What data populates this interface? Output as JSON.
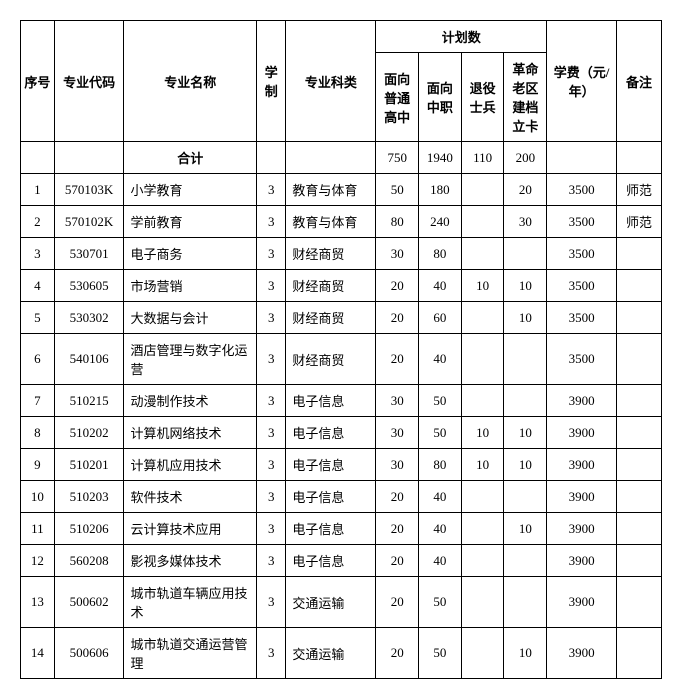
{
  "headers": {
    "seq": "序号",
    "code": "专业代码",
    "name": "专业名称",
    "system": "学制",
    "category": "专业科类",
    "plan_group": "计划数",
    "plan1": "面向普通高中",
    "plan2": "面向中职",
    "plan3": "退役士兵",
    "plan4": "革命老区建档立卡",
    "fee": "学费（元/年）",
    "note": "备注",
    "total": "合计"
  },
  "totals": {
    "plan1": "750",
    "plan2": "1940",
    "plan3": "110",
    "plan4": "200"
  },
  "rows": [
    {
      "seq": "1",
      "code": "570103K",
      "name": "小学教育",
      "system": "3",
      "category": "教育与体育",
      "p1": "50",
      "p2": "180",
      "p3": "",
      "p4": "20",
      "fee": "3500",
      "note": "师范"
    },
    {
      "seq": "2",
      "code": "570102K",
      "name": "学前教育",
      "system": "3",
      "category": "教育与体育",
      "p1": "80",
      "p2": "240",
      "p3": "",
      "p4": "30",
      "fee": "3500",
      "note": "师范"
    },
    {
      "seq": "3",
      "code": "530701",
      "name": "电子商务",
      "system": "3",
      "category": "财经商贸",
      "p1": "30",
      "p2": "80",
      "p3": "",
      "p4": "",
      "fee": "3500",
      "note": ""
    },
    {
      "seq": "4",
      "code": "530605",
      "name": "市场营销",
      "system": "3",
      "category": "财经商贸",
      "p1": "20",
      "p2": "40",
      "p3": "10",
      "p4": "10",
      "fee": "3500",
      "note": ""
    },
    {
      "seq": "5",
      "code": "530302",
      "name": "大数据与会计",
      "system": "3",
      "category": "财经商贸",
      "p1": "20",
      "p2": "60",
      "p3": "",
      "p4": "10",
      "fee": "3500",
      "note": ""
    },
    {
      "seq": "6",
      "code": "540106",
      "name": "酒店管理与数字化运营",
      "system": "3",
      "category": "财经商贸",
      "p1": "20",
      "p2": "40",
      "p3": "",
      "p4": "",
      "fee": "3500",
      "note": ""
    },
    {
      "seq": "7",
      "code": "510215",
      "name": "动漫制作技术",
      "system": "3",
      "category": "电子信息",
      "p1": "30",
      "p2": "50",
      "p3": "",
      "p4": "",
      "fee": "3900",
      "note": ""
    },
    {
      "seq": "8",
      "code": "510202",
      "name": "计算机网络技术",
      "system": "3",
      "category": "电子信息",
      "p1": "30",
      "p2": "50",
      "p3": "10",
      "p4": "10",
      "fee": "3900",
      "note": ""
    },
    {
      "seq": "9",
      "code": "510201",
      "name": "计算机应用技术",
      "system": "3",
      "category": "电子信息",
      "p1": "30",
      "p2": "80",
      "p3": "10",
      "p4": "10",
      "fee": "3900",
      "note": ""
    },
    {
      "seq": "10",
      "code": "510203",
      "name": "软件技术",
      "system": "3",
      "category": "电子信息",
      "p1": "20",
      "p2": "40",
      "p3": "",
      "p4": "",
      "fee": "3900",
      "note": ""
    },
    {
      "seq": "11",
      "code": "510206",
      "name": "云计算技术应用",
      "system": "3",
      "category": "电子信息",
      "p1": "20",
      "p2": "40",
      "p3": "",
      "p4": "10",
      "fee": "3900",
      "note": ""
    },
    {
      "seq": "12",
      "code": "560208",
      "name": "影视多媒体技术",
      "system": "3",
      "category": "电子信息",
      "p1": "20",
      "p2": "40",
      "p3": "",
      "p4": "",
      "fee": "3900",
      "note": ""
    },
    {
      "seq": "13",
      "code": "500602",
      "name": "城市轨道车辆应用技术",
      "system": "3",
      "category": "交通运输",
      "p1": "20",
      "p2": "50",
      "p3": "",
      "p4": "",
      "fee": "3900",
      "note": ""
    },
    {
      "seq": "14",
      "code": "500606",
      "name": "城市轨道交通运营管理",
      "system": "3",
      "category": "交通运输",
      "p1": "20",
      "p2": "50",
      "p3": "",
      "p4": "10",
      "fee": "3900",
      "note": ""
    }
  ]
}
